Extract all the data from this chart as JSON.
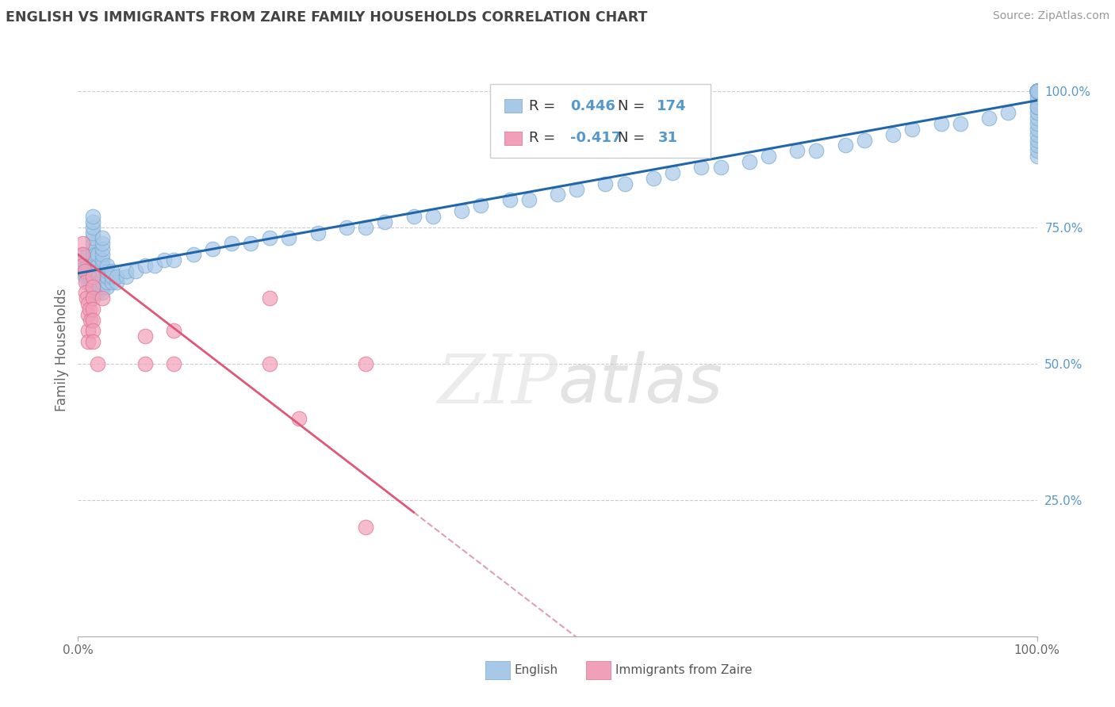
{
  "title": "ENGLISH VS IMMIGRANTS FROM ZAIRE FAMILY HOUSEHOLDS CORRELATION CHART",
  "source": "Source: ZipAtlas.com",
  "ylabel": "Family Households",
  "blue_color": "#a8c8e8",
  "blue_edge_color": "#7aaad0",
  "pink_color": "#f0a0b8",
  "pink_edge_color": "#e07090",
  "blue_line_color": "#2266aa",
  "pink_line_color": "#e05878",
  "dash_color": "#e0a0b0",
  "title_color": "#444444",
  "right_tick_color": "#5599cc",
  "watermark_color": "#e0e0e0",
  "legend_R1": "R = ",
  "legend_V1": "0.446",
  "legend_N1_label": "N = ",
  "legend_N1": "174",
  "legend_R2": "R = ",
  "legend_V2": "-0.417",
  "legend_N2_label": "N =  ",
  "legend_N2": "31",
  "bottom_label1": "English",
  "bottom_label2": "Immigrants from Zaire",
  "english_x": [
    0.005,
    0.005,
    0.005,
    0.005,
    0.007,
    0.008,
    0.009,
    0.01,
    0.01,
    0.01,
    0.01,
    0.01,
    0.012,
    0.013,
    0.015,
    0.015,
    0.015,
    0.015,
    0.015,
    0.015,
    0.015,
    0.015,
    0.015,
    0.015,
    0.015,
    0.015,
    0.015,
    0.015,
    0.015,
    0.016,
    0.016,
    0.016,
    0.018,
    0.018,
    0.018,
    0.018,
    0.018,
    0.018,
    0.018,
    0.018,
    0.02,
    0.02,
    0.02,
    0.02,
    0.02,
    0.02,
    0.02,
    0.022,
    0.023,
    0.025,
    0.025,
    0.025,
    0.025,
    0.025,
    0.025,
    0.025,
    0.025,
    0.025,
    0.025,
    0.025,
    0.03,
    0.03,
    0.03,
    0.03,
    0.03,
    0.035,
    0.035,
    0.035,
    0.04,
    0.04,
    0.05,
    0.05,
    0.06,
    0.07,
    0.08,
    0.09,
    0.1,
    0.12,
    0.14,
    0.16,
    0.18,
    0.2,
    0.22,
    0.25,
    0.28,
    0.3,
    0.32,
    0.35,
    0.37,
    0.4,
    0.42,
    0.45,
    0.47,
    0.5,
    0.52,
    0.55,
    0.57,
    0.6,
    0.62,
    0.65,
    0.67,
    0.7,
    0.72,
    0.75,
    0.77,
    0.8,
    0.82,
    0.85,
    0.87,
    0.9,
    0.92,
    0.95,
    0.97,
    1.0,
    1.0,
    1.0,
    1.0,
    1.0,
    1.0,
    1.0,
    1.0,
    1.0,
    1.0,
    1.0,
    1.0,
    1.0,
    1.0,
    1.0,
    1.0,
    1.0,
    1.0,
    1.0,
    1.0,
    1.0,
    1.0,
    1.0,
    1.0,
    1.0,
    1.0,
    1.0,
    1.0,
    1.0,
    1.0,
    1.0,
    1.0,
    1.0,
    1.0,
    1.0,
    1.0,
    1.0,
    1.0,
    1.0,
    1.0,
    1.0,
    1.0,
    1.0,
    1.0,
    1.0,
    1.0,
    1.0,
    1.0,
    1.0,
    1.0,
    1.0,
    1.0,
    1.0,
    1.0,
    1.0,
    1.0,
    1.0,
    1.0,
    1.0,
    1.0,
    1.0
  ],
  "english_y": [
    0.67,
    0.68,
    0.69,
    0.7,
    0.66,
    0.67,
    0.68,
    0.65,
    0.66,
    0.67,
    0.68,
    0.7,
    0.67,
    0.66,
    0.63,
    0.64,
    0.65,
    0.66,
    0.67,
    0.68,
    0.69,
    0.7,
    0.71,
    0.72,
    0.73,
    0.74,
    0.75,
    0.76,
    0.77,
    0.65,
    0.66,
    0.67,
    0.63,
    0.64,
    0.65,
    0.66,
    0.67,
    0.68,
    0.69,
    0.7,
    0.63,
    0.64,
    0.65,
    0.66,
    0.67,
    0.68,
    0.7,
    0.65,
    0.64,
    0.63,
    0.64,
    0.65,
    0.66,
    0.67,
    0.68,
    0.69,
    0.7,
    0.71,
    0.72,
    0.73,
    0.64,
    0.65,
    0.66,
    0.67,
    0.68,
    0.65,
    0.66,
    0.67,
    0.65,
    0.66,
    0.66,
    0.67,
    0.67,
    0.68,
    0.68,
    0.69,
    0.69,
    0.7,
    0.71,
    0.72,
    0.72,
    0.73,
    0.73,
    0.74,
    0.75,
    0.75,
    0.76,
    0.77,
    0.77,
    0.78,
    0.79,
    0.8,
    0.8,
    0.81,
    0.82,
    0.83,
    0.83,
    0.84,
    0.85,
    0.86,
    0.86,
    0.87,
    0.88,
    0.89,
    0.89,
    0.9,
    0.91,
    0.92,
    0.93,
    0.94,
    0.94,
    0.95,
    0.96,
    0.88,
    0.89,
    0.9,
    0.91,
    0.92,
    0.93,
    0.94,
    0.95,
    0.96,
    0.97,
    0.98,
    0.99,
    1.0,
    1.0,
    1.0,
    1.0,
    1.0,
    1.0,
    1.0,
    1.0,
    1.0,
    1.0,
    1.0,
    1.0,
    1.0,
    1.0,
    1.0,
    1.0,
    1.0,
    1.0,
    1.0,
    1.0,
    1.0,
    1.0,
    1.0,
    1.0,
    1.0,
    1.0,
    1.0,
    1.0,
    1.0,
    1.0,
    1.0,
    1.0,
    1.0,
    1.0,
    1.0,
    1.0,
    1.0,
    1.0,
    1.0,
    1.0,
    1.0,
    1.0,
    1.0,
    1.0,
    1.0,
    1.0,
    1.0,
    1.0,
    0.97
  ],
  "zaire_x": [
    0.005,
    0.005,
    0.005,
    0.007,
    0.008,
    0.008,
    0.009,
    0.01,
    0.01,
    0.01,
    0.01,
    0.012,
    0.013,
    0.015,
    0.015,
    0.015,
    0.015,
    0.015,
    0.015,
    0.015,
    0.02,
    0.025,
    0.07,
    0.07,
    0.1,
    0.1,
    0.2,
    0.2,
    0.23,
    0.3,
    0.3
  ],
  "zaire_y": [
    0.72,
    0.7,
    0.68,
    0.67,
    0.65,
    0.63,
    0.62,
    0.61,
    0.59,
    0.56,
    0.54,
    0.6,
    0.58,
    0.66,
    0.64,
    0.62,
    0.6,
    0.58,
    0.56,
    0.54,
    0.5,
    0.62,
    0.5,
    0.55,
    0.5,
    0.56,
    0.5,
    0.62,
    0.4,
    0.5,
    0.2
  ],
  "xlim": [
    0,
    1
  ],
  "ylim": [
    0,
    1.05
  ],
  "xtick_positions": [
    0,
    1
  ],
  "xtick_labels": [
    "0.0%",
    "100.0%"
  ],
  "ytick_positions": [
    0.25,
    0.5,
    0.75,
    1.0
  ],
  "ytick_labels": [
    "25.0%",
    "50.0%",
    "75.0%",
    "100.0%"
  ]
}
